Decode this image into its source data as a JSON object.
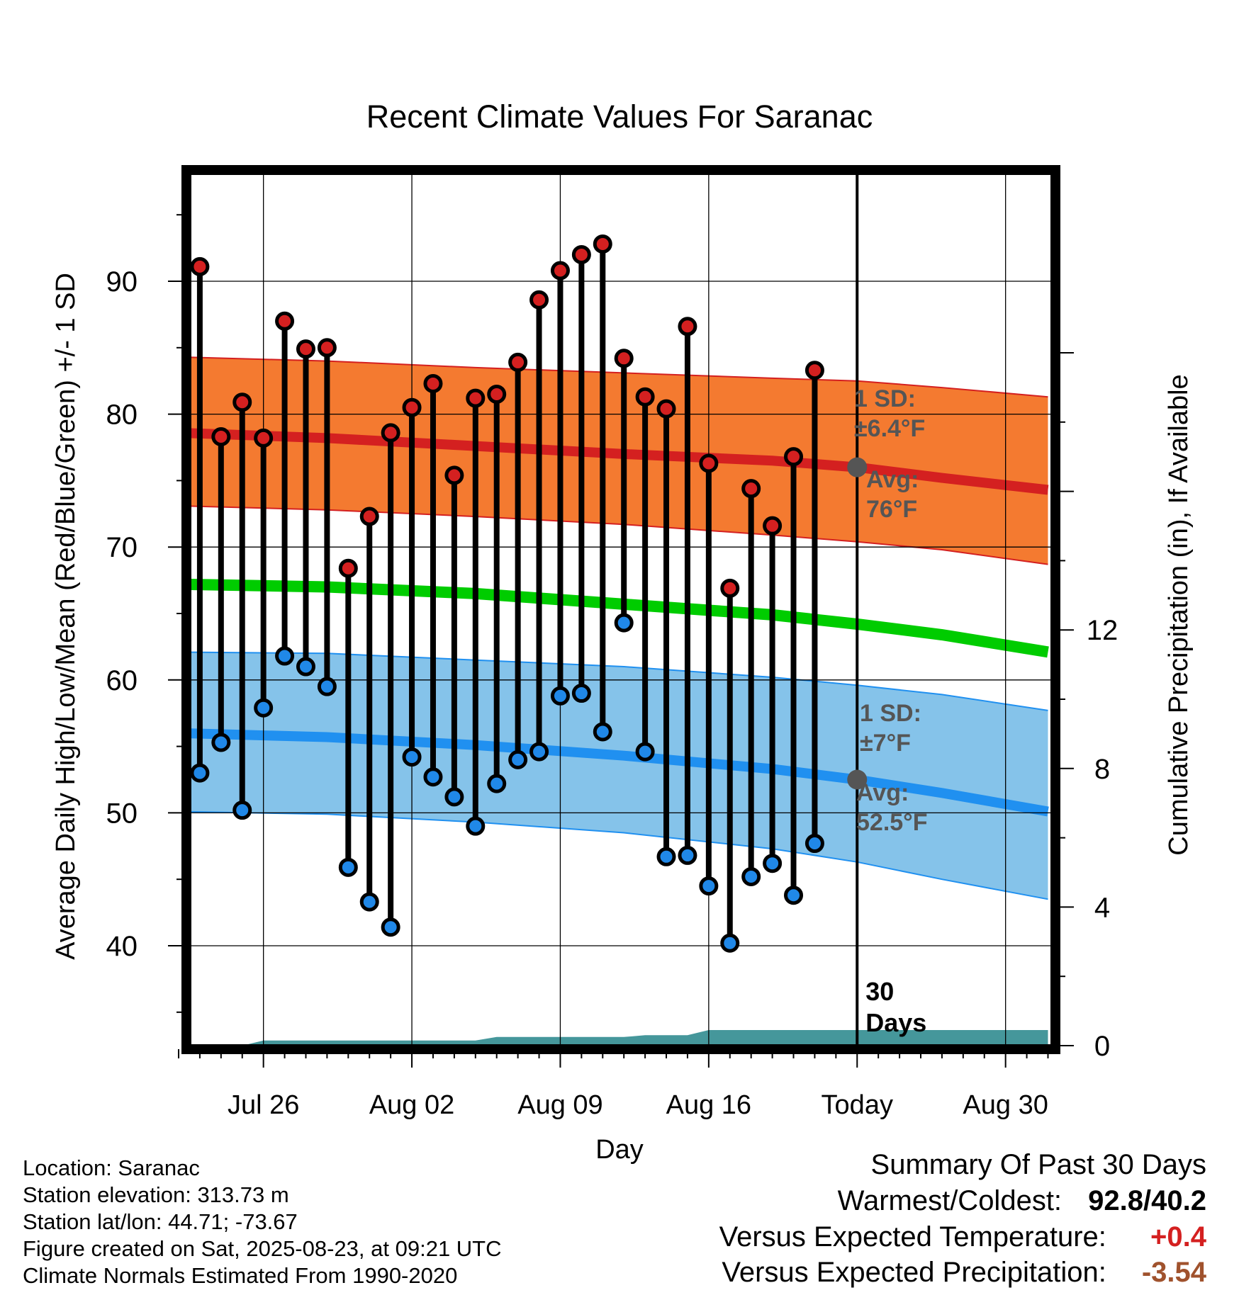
{
  "chart_data": {
    "type": "line",
    "title": "Recent Climate Values For Saranac",
    "xlabel": "Day",
    "ylabel": "Average Daily High/Low/Mean (Red/Blue/Green) +/- 1 SD",
    "y2label": "Cumulative Precipitation (in), If Available",
    "ylim": [
      33,
      97
    ],
    "y2lim": [
      0,
      21
    ],
    "yticks": [
      40,
      50,
      60,
      70,
      80,
      90
    ],
    "y2ticks": [
      0,
      4,
      8,
      12
    ],
    "xlim": [
      "2025-07-22",
      "2025-09-01"
    ],
    "xtick_labels": [
      {
        "date": "2025-07-26",
        "label": "Jul 26"
      },
      {
        "date": "2025-08-02",
        "label": "Aug 02"
      },
      {
        "date": "2025-08-09",
        "label": "Aug 09"
      },
      {
        "date": "2025-08-16",
        "label": "Aug 16"
      },
      {
        "date": "2025-08-23",
        "label": "Today"
      },
      {
        "date": "2025-08-30",
        "label": "Aug 30"
      }
    ],
    "grid": true,
    "today": "2025-08-23",
    "today_label": "30 Days",
    "daily_observations": [
      {
        "date": "2025-07-23",
        "high": 91.1,
        "low": 53.0
      },
      {
        "date": "2025-07-24",
        "high": 78.3,
        "low": 55.3
      },
      {
        "date": "2025-07-25",
        "high": 80.9,
        "low": 50.2
      },
      {
        "date": "2025-07-26",
        "high": 78.2,
        "low": 57.9
      },
      {
        "date": "2025-07-27",
        "high": 87.0,
        "low": 61.8
      },
      {
        "date": "2025-07-28",
        "high": 84.9,
        "low": 61.0
      },
      {
        "date": "2025-07-29",
        "high": 85.0,
        "low": 59.5
      },
      {
        "date": "2025-07-30",
        "high": 68.4,
        "low": 45.9
      },
      {
        "date": "2025-07-31",
        "high": 72.3,
        "low": 43.3
      },
      {
        "date": "2025-08-01",
        "high": 78.6,
        "low": 41.4
      },
      {
        "date": "2025-08-02",
        "high": 80.5,
        "low": 54.2
      },
      {
        "date": "2025-08-03",
        "high": 82.3,
        "low": 52.7
      },
      {
        "date": "2025-08-04",
        "high": 75.4,
        "low": 51.2
      },
      {
        "date": "2025-08-05",
        "high": 81.2,
        "low": 49.0
      },
      {
        "date": "2025-08-06",
        "high": 81.5,
        "low": 52.2
      },
      {
        "date": "2025-08-07",
        "high": 83.9,
        "low": 54.0
      },
      {
        "date": "2025-08-08",
        "high": 88.6,
        "low": 54.6
      },
      {
        "date": "2025-08-09",
        "high": 90.8,
        "low": 58.8
      },
      {
        "date": "2025-08-10",
        "high": 92.0,
        "low": 59.0
      },
      {
        "date": "2025-08-11",
        "high": 92.8,
        "low": 56.1
      },
      {
        "date": "2025-08-12",
        "high": 84.2,
        "low": 64.3
      },
      {
        "date": "2025-08-13",
        "high": 81.3,
        "low": 54.6
      },
      {
        "date": "2025-08-14",
        "high": 80.4,
        "low": 46.7
      },
      {
        "date": "2025-08-15",
        "high": 86.6,
        "low": 46.8
      },
      {
        "date": "2025-08-16",
        "high": 76.3,
        "low": 44.5
      },
      {
        "date": "2025-08-17",
        "high": 66.9,
        "low": 40.2
      },
      {
        "date": "2025-08-18",
        "high": 74.4,
        "low": 45.2
      },
      {
        "date": "2025-08-19",
        "high": 71.6,
        "low": 46.2
      },
      {
        "date": "2025-08-20",
        "high": 76.8,
        "low": 43.8
      },
      {
        "date": "2025-08-21",
        "high": 83.3,
        "low": 47.7
      }
    ],
    "normal_high": {
      "name": "Avg: 76°F",
      "sd": 6.4,
      "sd_label": "1 SD: ±6.4°F",
      "avg_label": "Avg: 76°F",
      "today_value": 76.0,
      "points": [
        {
          "date": "2025-07-22",
          "mean": 78.6,
          "lower": 73.1,
          "upper": 84.3
        },
        {
          "date": "2025-07-29",
          "mean": 78.2,
          "lower": 72.8,
          "upper": 84.0
        },
        {
          "date": "2025-08-05",
          "mean": 77.6,
          "lower": 72.3,
          "upper": 83.5
        },
        {
          "date": "2025-08-12",
          "mean": 77.0,
          "lower": 71.7,
          "upper": 83.1
        },
        {
          "date": "2025-08-19",
          "mean": 76.5,
          "lower": 70.9,
          "upper": 82.7
        },
        {
          "date": "2025-08-23",
          "mean": 76.0,
          "lower": 70.4,
          "upper": 82.5
        },
        {
          "date": "2025-08-27",
          "mean": 75.2,
          "lower": 69.8,
          "upper": 82.0
        },
        {
          "date": "2025-09-01",
          "mean": 74.3,
          "lower": 68.7,
          "upper": 81.3
        }
      ]
    },
    "normal_low": {
      "name": "Avg: 52.5°F",
      "sd": 7,
      "sd_label": "1 SD: ±7°F",
      "avg_label": "Avg: 52.5°F",
      "today_value": 52.5,
      "points": [
        {
          "date": "2025-07-22",
          "mean": 56.0,
          "lower": 50.1,
          "upper": 62.1
        },
        {
          "date": "2025-07-29",
          "mean": 55.7,
          "lower": 49.9,
          "upper": 62.0
        },
        {
          "date": "2025-08-05",
          "mean": 55.1,
          "lower": 49.3,
          "upper": 61.5
        },
        {
          "date": "2025-08-12",
          "mean": 54.3,
          "lower": 48.5,
          "upper": 61.0
        },
        {
          "date": "2025-08-19",
          "mean": 53.3,
          "lower": 47.3,
          "upper": 60.2
        },
        {
          "date": "2025-08-23",
          "mean": 52.5,
          "lower": 46.3,
          "upper": 59.6
        },
        {
          "date": "2025-08-27",
          "mean": 51.5,
          "lower": 45.0,
          "upper": 58.9
        },
        {
          "date": "2025-09-01",
          "mean": 50.1,
          "lower": 43.5,
          "upper": 57.7
        }
      ]
    },
    "normal_mean": {
      "points": [
        {
          "date": "2025-07-22",
          "mean": 67.2
        },
        {
          "date": "2025-07-29",
          "mean": 67.0
        },
        {
          "date": "2025-08-05",
          "mean": 66.5
        },
        {
          "date": "2025-08-12",
          "mean": 65.7
        },
        {
          "date": "2025-08-19",
          "mean": 64.9
        },
        {
          "date": "2025-08-23",
          "mean": 64.2
        },
        {
          "date": "2025-08-27",
          "mean": 63.4
        },
        {
          "date": "2025-09-01",
          "mean": 62.1
        }
      ]
    },
    "cumulative_precip": [
      {
        "date": "2025-07-22",
        "value": 0.0
      },
      {
        "date": "2025-07-25",
        "value": 0.0
      },
      {
        "date": "2025-07-26",
        "value": 0.15
      },
      {
        "date": "2025-08-05",
        "value": 0.15
      },
      {
        "date": "2025-08-06",
        "value": 0.25
      },
      {
        "date": "2025-08-12",
        "value": 0.25
      },
      {
        "date": "2025-08-13",
        "value": 0.3
      },
      {
        "date": "2025-08-15",
        "value": 0.3
      },
      {
        "date": "2025-08-16",
        "value": 0.45
      },
      {
        "date": "2025-09-01",
        "value": 0.45
      }
    ],
    "colors": {
      "high_marker": "#d42020",
      "low_marker": "#2088e8",
      "high_band": "#f47a30",
      "high_mean": "#d42020",
      "low_band": "#85c3ea",
      "low_mean": "#2090f0",
      "mean_line": "#00cc00",
      "precip": "#45979b",
      "annotation": "#555555"
    }
  },
  "info": {
    "location": "Location: Saranac",
    "elevation": "Station elevation: 313.73 m",
    "latlon": "Station lat/lon: 44.71; -73.67",
    "created": "Figure created on Sat, 2025-08-23, at 09:21 UTC",
    "normals": "Climate Normals Estimated From 1990-2020"
  },
  "summary": {
    "heading": "Summary Of Past 30 Days",
    "warmest_coldest_label": "Warmest/Coldest:",
    "warmest_coldest_value": "92.8/40.2",
    "temp_label": "Versus Expected Temperature:",
    "temp_value": "+0.4",
    "temp_color": "#d42020",
    "precip_label": "Versus Expected Precipitation:",
    "precip_value": "-3.54",
    "precip_color": "#a0522d"
  }
}
